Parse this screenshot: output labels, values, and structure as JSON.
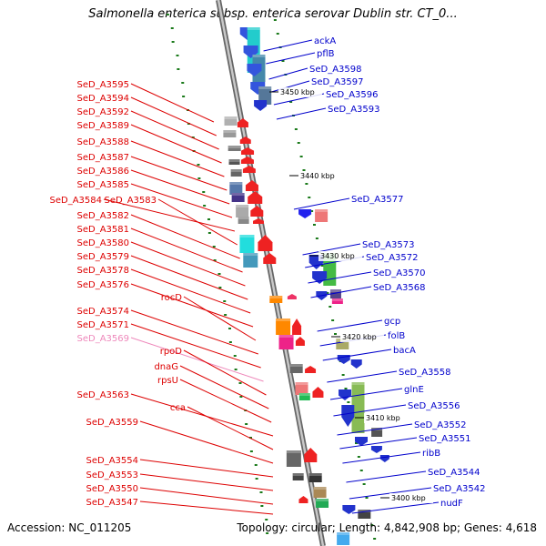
{
  "title": "Salmonella enterica subsp. enterica serovar Dublin str. CT_0...",
  "footer": {
    "accession": "Accession: NC_011205",
    "topology": "Topology: circular; Length: 4,842,908 bp; Genes: 4,618"
  },
  "colors": {
    "left_label": "#dd0000",
    "right_label": "#0000cc",
    "faded_label": "#ee88bb",
    "backbone": "#8a8a8a",
    "tick": "#1a7a1a"
  },
  "kbp_labels": [
    "3450 kbp",
    "3440 kbp",
    "3430 kbp",
    "3420 kbp",
    "3410 kbp",
    "3400 kbp"
  ],
  "left_genes": [
    "SeD_A3595",
    "SeD_A3594",
    "SeD_A3592",
    "SeD_A3589",
    "SeD_A3588",
    "SeD_A3587",
    "SeD_A3586",
    "SeD_A3585",
    "SeD_A3584",
    "SeD_A3583",
    "SeD_A3582",
    "SeD_A3581",
    "SeD_A3580",
    "SeD_A3579",
    "SeD_A3578",
    "SeD_A3576",
    "rocD",
    "SeD_A3574",
    "SeD_A3571",
    "SeD_A3569",
    "rpoD",
    "dnaG",
    "rpsU",
    "SeD_A3563",
    "cca",
    "SeD_A3559",
    "SeD_A3554",
    "SeD_A3553",
    "SeD_A3550",
    "SeD_A3547"
  ],
  "right_genes": [
    "ackA",
    "pflB",
    "SeD_A3598",
    "SeD_A3597",
    "SeD_A3596",
    "SeD_A3593",
    "SeD_A3577",
    "SeD_A3573",
    "SeD_A3572",
    "SeD_A3570",
    "SeD_A3568",
    "gcp",
    "folB",
    "bacA",
    "SeD_A3558",
    "glnE",
    "SeD_A3556",
    "SeD_A3552",
    "SeD_A3551",
    "ribB",
    "SeD_A3544",
    "SeD_A3542",
    "nudF"
  ]
}
